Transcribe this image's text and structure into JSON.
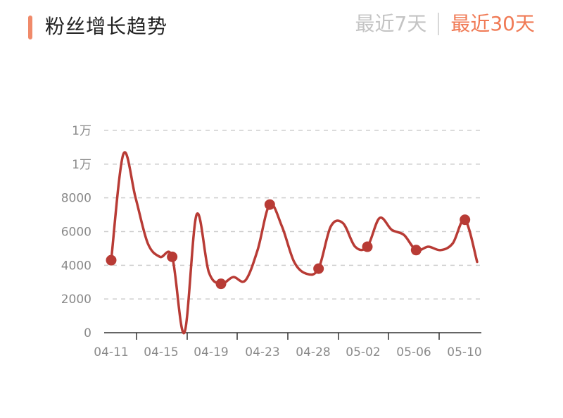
{
  "header": {
    "title": "粉丝增长趋势",
    "range_options": [
      {
        "label": "最近7天",
        "active": false
      },
      {
        "label": "最近30天",
        "active": true
      }
    ]
  },
  "colors": {
    "accent": "#f08a6a",
    "active_tab": "#f07a55",
    "inactive_tab": "#c4c4c4",
    "line": "#b83b35",
    "grid": "#cfcfcf",
    "axis": "#333333"
  },
  "chart_data": {
    "type": "line",
    "x_tick_labels": [
      "04-11",
      "04-15",
      "04-19",
      "04-23",
      "04-28",
      "05-02",
      "05-06",
      "05-10"
    ],
    "y_tick_labels": [
      "0",
      "2000",
      "4000",
      "6000",
      "8000",
      "1万",
      "1万"
    ],
    "ylim": [
      0,
      12000
    ],
    "grid": true,
    "series": [
      {
        "values": [
          4300,
          10600,
          8000,
          5300,
          4500,
          4500,
          0,
          7000,
          3600,
          2900,
          3300,
          3100,
          4900,
          7600,
          6300,
          4200,
          3500,
          3800,
          6300,
          6500,
          5100,
          5100,
          6800,
          6100,
          5800,
          4900,
          5100,
          4900,
          5300,
          6700,
          4200
        ],
        "marker_indices": [
          0,
          5,
          9,
          13,
          17,
          21,
          25,
          29
        ]
      }
    ]
  }
}
